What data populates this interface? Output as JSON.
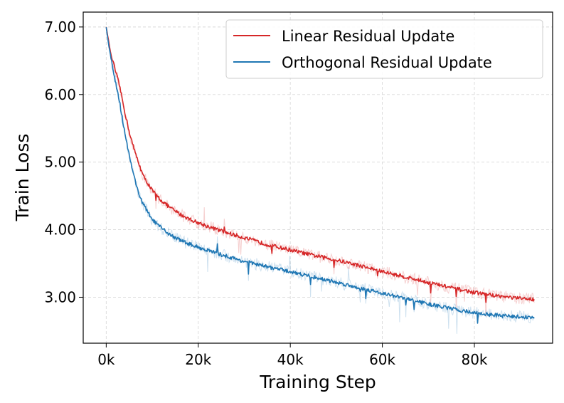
{
  "chart_data": {
    "type": "line",
    "title": "",
    "xlabel": "Training Step",
    "ylabel": "Train Loss",
    "xlim": [
      -5000,
      97000
    ],
    "ylim": [
      2.32,
      7.22
    ],
    "x_ticks": [
      0,
      20000,
      40000,
      60000,
      80000
    ],
    "x_tick_labels": [
      "0k",
      "20k",
      "40k",
      "60k",
      "80k"
    ],
    "y_ticks": [
      3.0,
      4.0,
      5.0,
      6.0,
      7.0
    ],
    "y_tick_labels": [
      "3.00",
      "4.00",
      "5.00",
      "6.00",
      "7.00"
    ],
    "grid": true,
    "legend_position": "top-right",
    "series": [
      {
        "name": "Linear Residual Update",
        "color": "#d62728",
        "x": [
          0,
          500,
          1000,
          2000,
          3000,
          4000,
          5000,
          6000,
          7000,
          8000,
          10000,
          12000,
          14000,
          16000,
          18000,
          20000,
          25000,
          30000,
          35000,
          40000,
          45000,
          50000,
          55000,
          60000,
          65000,
          70000,
          75000,
          80000,
          85000,
          90000,
          93000
        ],
        "values": [
          7.0,
          6.8,
          6.6,
          6.35,
          6.1,
          5.75,
          5.45,
          5.2,
          5.0,
          4.8,
          4.58,
          4.43,
          4.32,
          4.23,
          4.16,
          4.1,
          3.98,
          3.88,
          3.78,
          3.7,
          3.62,
          3.55,
          3.47,
          3.38,
          3.3,
          3.22,
          3.14,
          3.07,
          3.02,
          2.98,
          2.97
        ]
      },
      {
        "name": "Orthogonal Residual Update",
        "color": "#1f77b4",
        "x": [
          0,
          500,
          1000,
          2000,
          3000,
          4000,
          5000,
          6000,
          7000,
          8000,
          10000,
          12000,
          14000,
          16000,
          18000,
          20000,
          25000,
          30000,
          35000,
          40000,
          45000,
          50000,
          55000,
          60000,
          65000,
          70000,
          75000,
          80000,
          85000,
          90000,
          93000
        ],
        "values": [
          7.0,
          6.75,
          6.55,
          6.2,
          5.85,
          5.45,
          5.1,
          4.8,
          4.55,
          4.38,
          4.15,
          4.02,
          3.92,
          3.85,
          3.79,
          3.74,
          3.63,
          3.53,
          3.45,
          3.38,
          3.3,
          3.22,
          3.14,
          3.06,
          2.98,
          2.9,
          2.83,
          2.77,
          2.73,
          2.71,
          2.7
        ]
      }
    ]
  }
}
